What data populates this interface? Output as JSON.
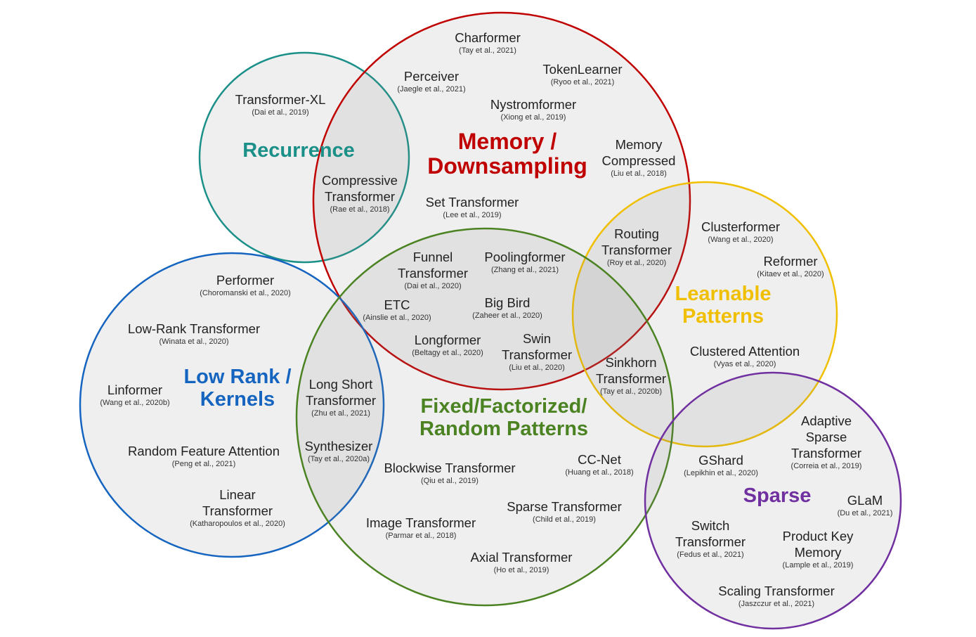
{
  "groups": {
    "recurrence": {
      "label": "Recurrence",
      "color": "#1a9089"
    },
    "memory": {
      "label": "Memory /\nDownsampling",
      "color": "#c00000"
    },
    "learnable": {
      "label": "Learnable\nPatterns",
      "color": "#f0c000"
    },
    "low_rank": {
      "label": "Low Rank /\nKernels",
      "color": "#1565c0"
    },
    "fixed": {
      "label": "Fixed/Factorized/\nRandom Patterns",
      "color": "#4b8222"
    },
    "sparse": {
      "label": "Sparse",
      "color": "#7030a0"
    }
  },
  "models": [
    {
      "name": "Charformer",
      "cite": "(Tay et al., 2021)"
    },
    {
      "name": "Perceiver",
      "cite": "(Jaegle et al., 2021)"
    },
    {
      "name": "TokenLearner",
      "cite": "(Ryoo et al., 2021)"
    },
    {
      "name": "Transformer-XL",
      "cite": "(Dai et al., 2019)"
    },
    {
      "name": "Nystromformer",
      "cite": "(Xiong et al., 2019)"
    },
    {
      "name": "Memory\nCompressed",
      "cite": "(Liu et al., 2018)"
    },
    {
      "name": "Compressive\nTransformer",
      "cite": "(Rae et al., 2018)"
    },
    {
      "name": "Set Transformer",
      "cite": "(Lee et al., 2019)"
    },
    {
      "name": "Clusterformer",
      "cite": "(Wang et al., 2020)"
    },
    {
      "name": "Routing\nTransformer",
      "cite": "(Roy et al., 2020)"
    },
    {
      "name": "Reformer",
      "cite": "(Kitaev et al., 2020)"
    },
    {
      "name": "Funnel\nTransformer",
      "cite": "(Dai et al., 2020)"
    },
    {
      "name": "Poolingformer",
      "cite": "(Zhang et al., 2021)"
    },
    {
      "name": "Performer",
      "cite": "(Choromanski et al., 2020)"
    },
    {
      "name": "Big Bird",
      "cite": "(Zaheer et al., 2020)"
    },
    {
      "name": "ETC",
      "cite": "(Ainslie et al., 2020)"
    },
    {
      "name": "Low-Rank Transformer",
      "cite": "(Winata et al., 2020)"
    },
    {
      "name": "Longformer",
      "cite": "(Beltagy et al., 2020)"
    },
    {
      "name": "Swin\nTransformer",
      "cite": "(Liu et al., 2020)"
    },
    {
      "name": "Clustered Attention",
      "cite": "(Vyas et al., 2020)"
    },
    {
      "name": "Sinkhorn\nTransformer",
      "cite": "(Tay et al., 2020b)"
    },
    {
      "name": "Long Short\nTransformer",
      "cite": "(Zhu et al., 2021)"
    },
    {
      "name": "Linformer",
      "cite": "(Wang et al., 2020b)"
    },
    {
      "name": "Adaptive\nSparse\nTransformer",
      "cite": "(Correia et al., 2019)"
    },
    {
      "name": "Random Feature Attention",
      "cite": "(Peng et al., 2021)"
    },
    {
      "name": "Synthesizer",
      "cite": "(Tay et al., 2020a)"
    },
    {
      "name": "CC-Net",
      "cite": "(Huang et al., 2018)"
    },
    {
      "name": "GShard",
      "cite": "(Lepikhin et al., 2020)"
    },
    {
      "name": "Blockwise Transformer",
      "cite": "(Qiu et al., 2019)"
    },
    {
      "name": "Linear\nTransformer",
      "cite": "(Katharopoulos et al., 2020)"
    },
    {
      "name": "GLaM",
      "cite": "(Du et al., 2021)"
    },
    {
      "name": "Sparse Transformer",
      "cite": "(Child et al., 2019)"
    },
    {
      "name": "Image Transformer",
      "cite": "(Parmar et al., 2018)"
    },
    {
      "name": "Switch\nTransformer",
      "cite": "(Fedus et al., 2021)"
    },
    {
      "name": "Product Key\nMemory",
      "cite": "(Lample et al., 2019)"
    },
    {
      "name": "Axial Transformer",
      "cite": "(Ho et al., 2019)"
    },
    {
      "name": "Scaling Transformer",
      "cite": "(Jaszczur et al., 2021)"
    }
  ]
}
